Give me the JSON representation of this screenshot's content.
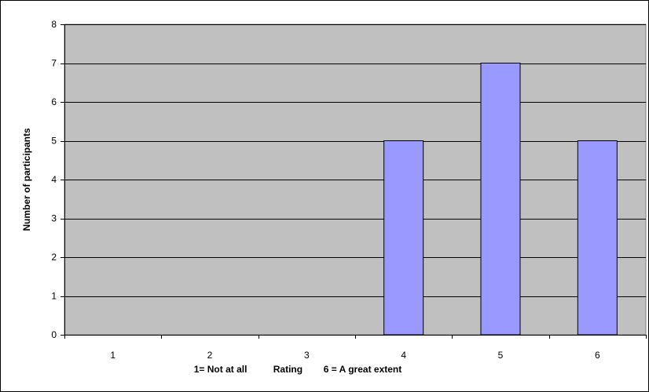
{
  "chart_data": {
    "type": "bar",
    "title": "",
    "xlabel": "1= Not at all          Rating        6 = A great extent",
    "ylabel": "Number of participants",
    "categories": [
      "1",
      "2",
      "3",
      "4",
      "5",
      "6"
    ],
    "values": [
      0,
      0,
      0,
      5,
      7,
      5
    ],
    "ylim": [
      0,
      8
    ],
    "yticks": [
      0,
      1,
      2,
      3,
      4,
      5,
      6,
      7,
      8
    ],
    "grid": true,
    "legend": "none",
    "colors": {
      "bar": "#9999ff",
      "plot_background": "#c0c0c0",
      "gridline": "#000000"
    }
  }
}
